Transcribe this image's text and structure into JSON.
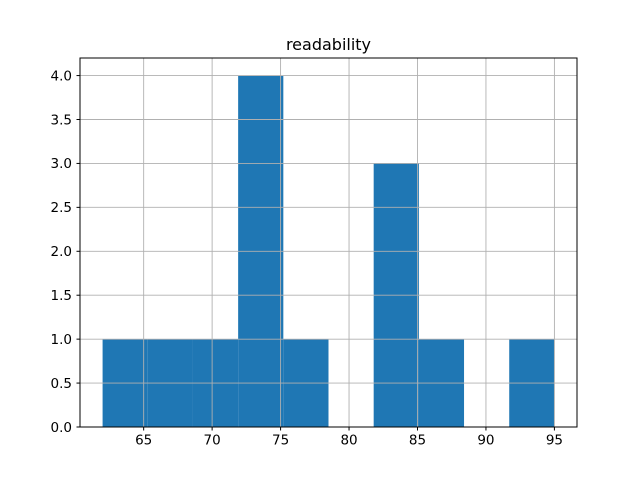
{
  "chart_data": {
    "type": "bar",
    "subtype": "histogram",
    "title": "readability",
    "xlabel": "",
    "ylabel": "",
    "bin_edges": [
      62.0,
      65.3,
      68.6,
      71.9,
      75.2,
      78.5,
      81.8,
      85.1,
      88.4,
      91.7,
      95.0
    ],
    "counts": [
      1,
      1,
      1,
      4,
      1,
      0,
      3,
      1,
      0,
      1
    ],
    "x_ticks": [
      65,
      70,
      75,
      80,
      85,
      90,
      95
    ],
    "x_tick_labels": [
      "65",
      "70",
      "75",
      "80",
      "85",
      "90",
      "95"
    ],
    "y_ticks": [
      0.0,
      0.5,
      1.0,
      1.5,
      2.0,
      2.5,
      3.0,
      3.5,
      4.0
    ],
    "y_tick_labels": [
      "0.0",
      "0.5",
      "1.0",
      "1.5",
      "2.0",
      "2.5",
      "3.0",
      "3.5",
      "4.0"
    ],
    "xlim": [
      60.35,
      96.65
    ],
    "ylim": [
      0.0,
      4.2
    ],
    "grid": true,
    "grid_above_bars": true,
    "legend": null,
    "colors": {
      "bar": "#1f77b4",
      "grid": "#b0b0b0",
      "spine": "#000000",
      "text": "#000000",
      "background": "#ffffff"
    }
  }
}
